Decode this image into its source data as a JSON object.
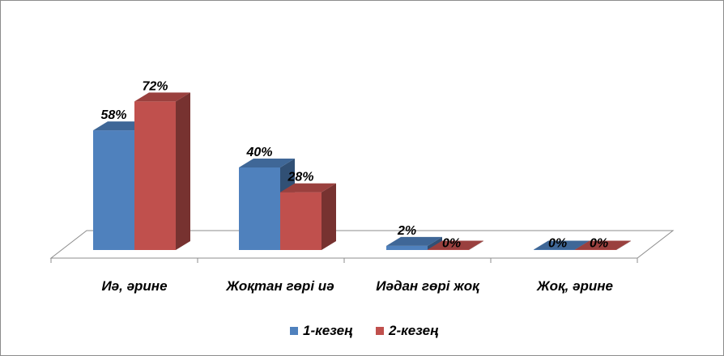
{
  "chart_data": {
    "type": "bar",
    "style": "3d-clustered-column",
    "categories": [
      "Иә, әрине",
      "Жоқтан гөрі иә",
      "Иәдан гөрі жоқ",
      "Жоқ, әрине"
    ],
    "series": [
      {
        "name": "1-кезең",
        "values": [
          58,
          40,
          2,
          0
        ],
        "labels": [
          "58%",
          "40%",
          "2%",
          "0%"
        ],
        "color": "#4f81bd"
      },
      {
        "name": "2-кезең",
        "values": [
          72,
          28,
          0,
          0
        ],
        "labels": [
          "72%",
          "28%",
          "0%",
          "0%"
        ],
        "color": "#c0504d"
      }
    ],
    "ylim": [
      0,
      80
    ],
    "grid": false,
    "legend_position": "bottom"
  }
}
